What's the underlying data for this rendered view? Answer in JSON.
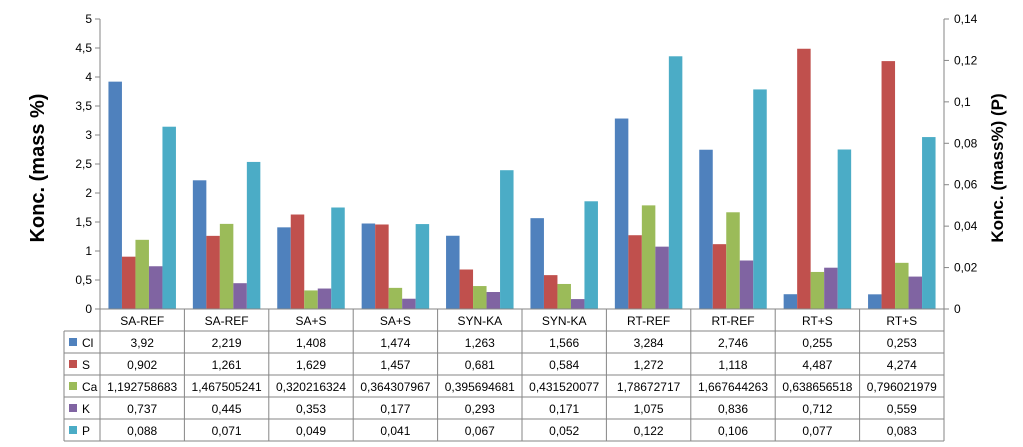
{
  "chart_data": {
    "type": "bar",
    "ylabel": "Konc. (mass %)",
    "y2label": "Konc. (mass%) (P)",
    "ylim": [
      0,
      5
    ],
    "y2lim": [
      0,
      0.14
    ],
    "yticks": [
      "0",
      "0,5",
      "1",
      "1,5",
      "2",
      "2,5",
      "3",
      "3,5",
      "4",
      "4,5",
      "5"
    ],
    "y2ticks": [
      "0",
      "0,02",
      "0,04",
      "0,06",
      "0,08",
      "0,1",
      "0,12",
      "0,14"
    ],
    "grid": false,
    "legend": "data-table",
    "categories": [
      "SA-REF",
      "SA-REF",
      "SA+S",
      "SA+S",
      "SYN-KA",
      "SYN-KA",
      "RT-REF",
      "RT-REF",
      "RT+S",
      "RT+S"
    ],
    "series": [
      {
        "name": "Cl",
        "axis": "left",
        "color": "#4f81bd",
        "values": [
          3.92,
          2.219,
          1.408,
          1.474,
          1.263,
          1.566,
          3.284,
          2.746,
          0.255,
          0.253
        ],
        "labels": [
          "3,92",
          "2,219",
          "1,408",
          "1,474",
          "1,263",
          "1,566",
          "3,284",
          "2,746",
          "0,255",
          "0,253"
        ]
      },
      {
        "name": "S",
        "axis": "left",
        "color": "#c0504d",
        "values": [
          0.902,
          1.261,
          1.629,
          1.457,
          0.681,
          0.584,
          1.272,
          1.118,
          4.487,
          4.274
        ],
        "labels": [
          "0,902",
          "1,261",
          "1,629",
          "1,457",
          "0,681",
          "0,584",
          "1,272",
          "1,118",
          "4,487",
          "4,274"
        ]
      },
      {
        "name": "Ca",
        "axis": "left",
        "color": "#9bbb59",
        "values": [
          1.192758683,
          1.467505241,
          0.320216324,
          0.364307967,
          0.395694681,
          0.431520077,
          1.78672717,
          1.667644263,
          0.638656518,
          0.796021979
        ],
        "labels": [
          "1,192758683",
          "1,467505241",
          "0,320216324",
          "0,364307967",
          "0,395694681",
          "0,431520077",
          "1,78672717",
          "1,667644263",
          "0,638656518",
          "0,796021979"
        ]
      },
      {
        "name": "K",
        "axis": "left",
        "color": "#8064a2",
        "values": [
          0.737,
          0.445,
          0.353,
          0.177,
          0.293,
          0.171,
          1.075,
          0.836,
          0.712,
          0.559
        ],
        "labels": [
          "0,737",
          "0,445",
          "0,353",
          "0,177",
          "0,293",
          "0,171",
          "1,075",
          "0,836",
          "0,712",
          "0,559"
        ]
      },
      {
        "name": "P",
        "axis": "right",
        "color": "#4bacc6",
        "values": [
          0.088,
          0.071,
          0.049,
          0.041,
          0.067,
          0.052,
          0.122,
          0.106,
          0.077,
          0.083
        ],
        "labels": [
          "0,088",
          "0,071",
          "0,049",
          "0,041",
          "0,067",
          "0,052",
          "0,122",
          "0,106",
          "0,077",
          "0,083"
        ]
      }
    ]
  }
}
